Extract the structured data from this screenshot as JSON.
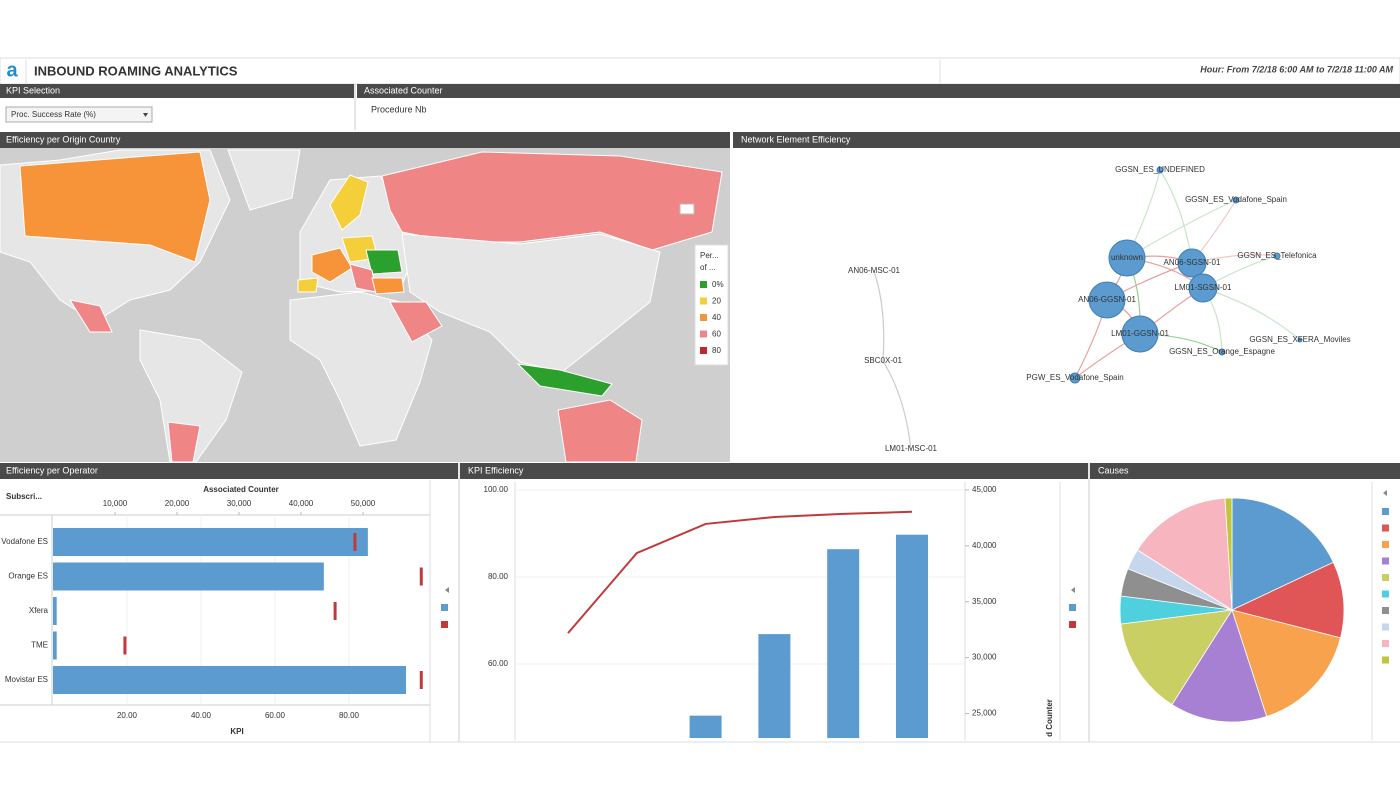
{
  "header": {
    "logo": "a",
    "title": "INBOUND ROAMING ANALYTICS",
    "time_range": "Hour: From 7/2/18 6:00 AM to 7/2/18 11:00 AM"
  },
  "kpi_selection": {
    "title": "KPI Selection",
    "dropdown": "Proc. Success Rate (%)"
  },
  "associated_counter": {
    "title": "Associated Counter",
    "value": "Procedure Nb"
  },
  "map": {
    "title": "Efficiency per Origin Country",
    "legend": {
      "title": [
        "Per...",
        "of ..."
      ],
      "items": [
        {
          "label": "0%",
          "color": "#2ca02c"
        },
        {
          "label": "20",
          "color": "#f5cf3a"
        },
        {
          "label": "40",
          "color": "#f7943a"
        },
        {
          "label": "60",
          "color": "#ef8585"
        },
        {
          "label": "80",
          "color": "#c0282a"
        }
      ]
    }
  },
  "network": {
    "title": "Network Element Efficiency",
    "nodes": [
      "GGSN_ES_UNDEFINED",
      "GGSN_ES_Vodafone_Spain",
      "unknown",
      "AN06-SGSN-01",
      "GGSN_ES_Telefonica",
      "LM01-SGSN-01",
      "AN06-GGSN-01",
      "LM01-GGSN-01",
      "GGSN_ES_XFERA_Moviles",
      "GGSN_ES_Orange_Espagne",
      "PGW_ES_Vodafone_Spain",
      "AN06-MSC-01",
      "SBC0X-01",
      "LM01-MSC-01"
    ]
  },
  "chart_data": [
    {
      "type": "hbar",
      "title": "Efficiency per Operator",
      "category_label": "Subscri...",
      "xlabel": "KPI",
      "x2label": "Associated Counter",
      "categories": [
        "Vodafone ES",
        "Orange ES",
        "Xfera",
        "TME",
        "Movistar ES"
      ],
      "series": [
        {
          "color": "#5b9bcf",
          "values": [
            85.1,
            73.2,
            1,
            1,
            95.4
          ]
        },
        {
          "color": "#c0393b",
          "values": [
            48700,
            59400,
            45500,
            11600,
            59400
          ],
          "axis": "x2"
        }
      ],
      "xlim": [
        0,
        100
      ],
      "xticks": [
        {
          "value": 20,
          "label": "20.00"
        },
        {
          "value": 40,
          "label": "40.00"
        },
        {
          "value": 60,
          "label": "60.00"
        },
        {
          "value": 80,
          "label": "80.00"
        }
      ],
      "x2lim": [
        0,
        60000
      ],
      "x2ticks": [
        {
          "value": 10000,
          "label": "10,000"
        },
        {
          "value": 20000,
          "label": "20,000"
        },
        {
          "value": 30000,
          "label": "30,000"
        },
        {
          "value": 40000,
          "label": "40,000"
        },
        {
          "value": 50000,
          "label": "50,000"
        }
      ],
      "grid": true
    },
    {
      "type": "bar_line",
      "title": "KPI Efficiency",
      "y2label": "d Counter",
      "categories": [
        null,
        null,
        null,
        null,
        null,
        null
      ],
      "series": [
        {
          "type": "bar",
          "color": "#5b9bcf",
          "values": [
            null,
            null,
            24800,
            32100,
            39700,
            41000
          ],
          "axis": "y2"
        },
        {
          "type": "line",
          "color": "#c0393b",
          "values": [
            67.1,
            85.5,
            92.2,
            93.8,
            94.5,
            95.0
          ]
        }
      ],
      "ylim": [
        43,
        100
      ],
      "yticks": [
        {
          "value": 60,
          "label": "60.00"
        },
        {
          "value": 80,
          "label": "80.00"
        },
        {
          "value": 100,
          "label": "100.00"
        }
      ],
      "y2lim": [
        22800,
        45000
      ],
      "y2ticks": [
        {
          "value": 25000,
          "label": "25,000"
        },
        {
          "value": 30000,
          "label": "30,000"
        },
        {
          "value": 35000,
          "label": "35,000"
        },
        {
          "value": 40000,
          "label": "40,000"
        },
        {
          "value": 45000,
          "label": "45,000"
        }
      ],
      "grid": true
    },
    {
      "type": "pie",
      "title": "Causes",
      "values": [
        18,
        11,
        16,
        14,
        14,
        4,
        4,
        3,
        15,
        1
      ],
      "colors": [
        "#5b9bcf",
        "#e05555",
        "#f9a24d",
        "#a780d3",
        "#c9cf63",
        "#4fd0df",
        "#8f8f8f",
        "#c6d6ec",
        "#f7b6bf",
        "#c4c43a"
      ]
    }
  ]
}
